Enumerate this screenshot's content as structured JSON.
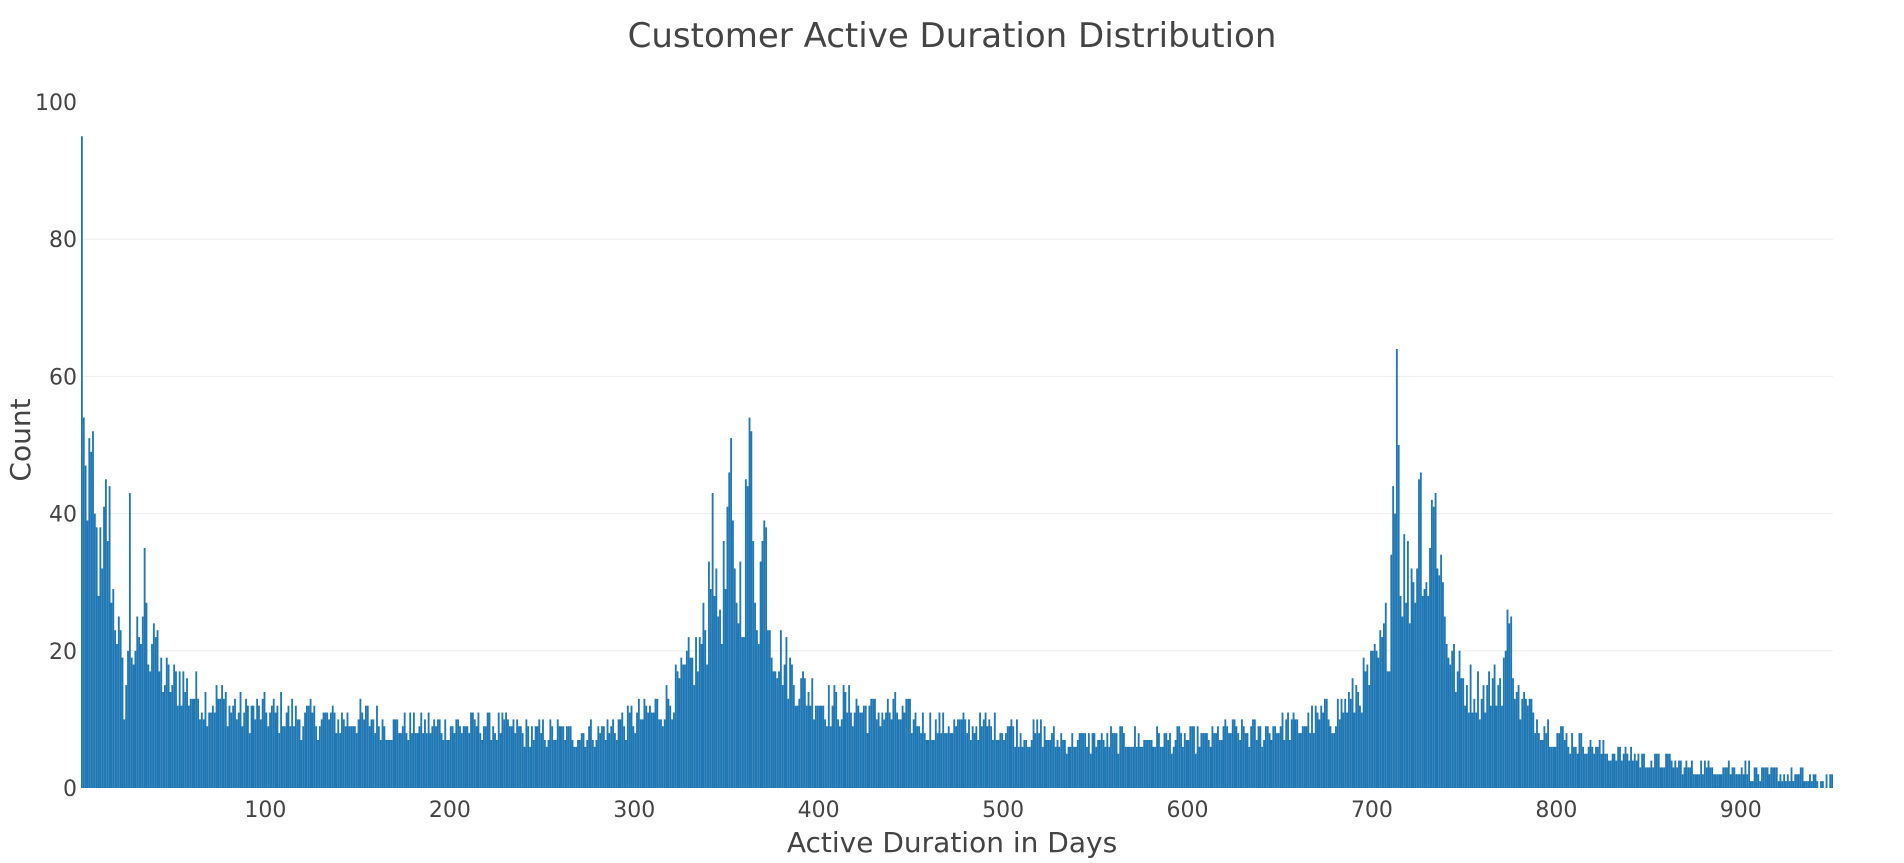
{
  "chart_data": {
    "type": "bar",
    "title": "Customer Active Duration Distribution",
    "xlabel": "Active Duration in Days",
    "ylabel": "Count",
    "xlim": [
      0,
      950
    ],
    "ylim": [
      0,
      100
    ],
    "x_ticks": [
      100,
      200,
      300,
      400,
      500,
      600,
      700,
      800,
      900
    ],
    "y_ticks": [
      0,
      20,
      40,
      60,
      80,
      100
    ],
    "grid": true,
    "bar_color": "#1f77b4",
    "bin_width_days": 1,
    "peaks": [
      {
        "x": 1,
        "y": 95
      },
      {
        "x": 2,
        "y": 54
      },
      {
        "x": 5,
        "y": 51
      },
      {
        "x": 27,
        "y": 43
      },
      {
        "x": 35,
        "y": 35
      },
      {
        "x": 343,
        "y": 43
      },
      {
        "x": 352,
        "y": 46
      },
      {
        "x": 363,
        "y": 54
      },
      {
        "x": 371,
        "y": 39
      },
      {
        "x": 714,
        "y": 64
      },
      {
        "x": 726,
        "y": 45
      },
      {
        "x": 735,
        "y": 43
      },
      {
        "x": 775,
        "y": 24
      }
    ],
    "segments": [
      [
        1,
        95
      ],
      [
        2,
        54
      ],
      [
        3,
        43
      ],
      [
        4,
        44
      ],
      [
        5,
        51
      ],
      [
        6,
        46
      ],
      [
        8,
        36
      ],
      [
        10,
        34
      ],
      [
        12,
        29
      ],
      [
        14,
        40
      ],
      [
        16,
        38
      ],
      [
        18,
        28
      ],
      [
        20,
        25
      ],
      [
        22,
        19
      ],
      [
        24,
        13
      ],
      [
        26,
        18
      ],
      [
        27,
        43
      ],
      [
        28,
        20
      ],
      [
        30,
        22
      ],
      [
        32,
        18
      ],
      [
        34,
        26
      ],
      [
        35,
        35
      ],
      [
        36,
        23
      ],
      [
        38,
        21
      ],
      [
        40,
        26
      ],
      [
        42,
        18
      ],
      [
        45,
        16
      ],
      [
        50,
        15
      ],
      [
        55,
        16
      ],
      [
        60,
        14
      ],
      [
        65,
        13
      ],
      [
        70,
        13
      ],
      [
        75,
        13
      ],
      [
        80,
        12
      ],
      [
        90,
        11
      ],
      [
        100,
        11
      ],
      [
        110,
        11
      ],
      [
        120,
        10
      ],
      [
        130,
        10
      ],
      [
        140,
        10
      ],
      [
        150,
        10
      ],
      [
        160,
        10
      ],
      [
        170,
        9
      ],
      [
        180,
        9
      ],
      [
        190,
        9
      ],
      [
        200,
        9
      ],
      [
        210,
        9
      ],
      [
        220,
        9
      ],
      [
        230,
        9
      ],
      [
        240,
        8
      ],
      [
        250,
        8
      ],
      [
        260,
        8
      ],
      [
        270,
        8
      ],
      [
        280,
        8
      ],
      [
        290,
        9
      ],
      [
        300,
        10
      ],
      [
        310,
        11
      ],
      [
        320,
        13
      ],
      [
        330,
        17
      ],
      [
        335,
        19
      ],
      [
        340,
        24
      ],
      [
        343,
        43
      ],
      [
        345,
        25
      ],
      [
        350,
        30
      ],
      [
        352,
        46
      ],
      [
        355,
        28
      ],
      [
        360,
        30
      ],
      [
        363,
        54
      ],
      [
        365,
        33
      ],
      [
        368,
        27
      ],
      [
        371,
        39
      ],
      [
        375,
        22
      ],
      [
        380,
        19
      ],
      [
        385,
        17
      ],
      [
        390,
        15
      ],
      [
        400,
        13
      ],
      [
        410,
        12
      ],
      [
        420,
        12
      ],
      [
        430,
        11
      ],
      [
        440,
        11
      ],
      [
        450,
        10
      ],
      [
        460,
        9
      ],
      [
        470,
        9
      ],
      [
        480,
        9
      ],
      [
        490,
        9
      ],
      [
        500,
        9
      ],
      [
        510,
        8
      ],
      [
        520,
        8
      ],
      [
        530,
        7
      ],
      [
        540,
        7
      ],
      [
        550,
        7
      ],
      [
        560,
        7
      ],
      [
        570,
        7
      ],
      [
        580,
        7
      ],
      [
        590,
        7
      ],
      [
        600,
        7
      ],
      [
        610,
        7
      ],
      [
        620,
        8
      ],
      [
        630,
        8
      ],
      [
        640,
        8
      ],
      [
        650,
        9
      ],
      [
        660,
        9
      ],
      [
        670,
        10
      ],
      [
        680,
        11
      ],
      [
        690,
        13
      ],
      [
        700,
        16
      ],
      [
        705,
        19
      ],
      [
        710,
        24
      ],
      [
        714,
        64
      ],
      [
        716,
        33
      ],
      [
        720,
        30
      ],
      [
        725,
        34
      ],
      [
        726,
        45
      ],
      [
        730,
        30
      ],
      [
        735,
        43
      ],
      [
        740,
        25
      ],
      [
        745,
        17
      ],
      [
        750,
        15
      ],
      [
        760,
        14
      ],
      [
        770,
        15
      ],
      [
        775,
        24
      ],
      [
        780,
        13
      ],
      [
        790,
        10
      ],
      [
        800,
        8
      ],
      [
        810,
        7
      ],
      [
        820,
        6
      ],
      [
        830,
        5
      ],
      [
        840,
        5
      ],
      [
        850,
        4
      ],
      [
        860,
        4
      ],
      [
        870,
        3
      ],
      [
        880,
        3
      ],
      [
        890,
        3
      ],
      [
        900,
        3
      ],
      [
        910,
        2
      ],
      [
        920,
        2
      ],
      [
        930,
        2
      ],
      [
        940,
        1
      ],
      [
        950,
        1
      ]
    ]
  }
}
